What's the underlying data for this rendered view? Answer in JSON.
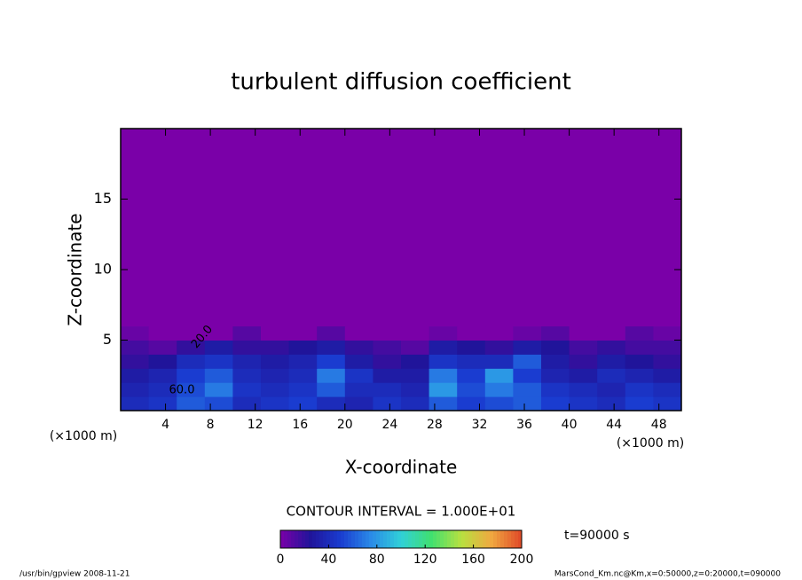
{
  "chart_data": {
    "type": "heatmap",
    "title": "turbulent diffusion coefficient",
    "xlabel": "X-coordinate",
    "ylabel": "Z-coordinate",
    "xunit": "(×1000 m)",
    "yunit": "(×1000 m)",
    "xlim": [
      0,
      50
    ],
    "ylim": [
      0,
      20
    ],
    "xticks": [
      4,
      8,
      12,
      16,
      20,
      24,
      28,
      32,
      36,
      40,
      44,
      48
    ],
    "yticks": [
      5,
      10,
      15
    ],
    "xbins": [
      0,
      2.5,
      5,
      7.5,
      10,
      12.5,
      15,
      17.5,
      20,
      22.5,
      25,
      27.5,
      30,
      32.5,
      35,
      37.5,
      40,
      42.5,
      45,
      47.5,
      50
    ],
    "ybins": [
      0,
      1,
      2,
      3,
      4,
      5,
      6,
      20
    ],
    "values": [
      [
        40,
        45,
        60,
        55,
        40,
        45,
        50,
        40,
        35,
        45,
        40,
        60,
        50,
        55,
        60,
        50,
        45,
        40,
        50,
        45
      ],
      [
        35,
        40,
        55,
        70,
        45,
        40,
        45,
        60,
        40,
        40,
        35,
        80,
        55,
        70,
        60,
        45,
        40,
        35,
        45,
        40
      ],
      [
        30,
        35,
        50,
        60,
        40,
        35,
        40,
        70,
        45,
        30,
        30,
        70,
        50,
        80,
        50,
        35,
        30,
        40,
        35,
        30
      ],
      [
        20,
        25,
        40,
        45,
        35,
        30,
        35,
        50,
        30,
        20,
        25,
        45,
        40,
        40,
        60,
        30,
        20,
        30,
        25,
        20
      ],
      [
        15,
        10,
        20,
        30,
        20,
        20,
        25,
        30,
        20,
        15,
        10,
        30,
        25,
        20,
        30,
        25,
        15,
        20,
        15,
        15
      ],
      [
        5,
        0,
        0,
        0,
        10,
        0,
        0,
        10,
        0,
        0,
        0,
        5,
        0,
        0,
        5,
        10,
        0,
        0,
        10,
        5
      ],
      [
        0,
        0,
        0,
        0,
        0,
        0,
        0,
        0,
        0,
        0,
        0,
        0,
        0,
        0,
        0,
        0,
        0,
        0,
        0,
        0
      ]
    ],
    "colormap": [
      "#7a00a8",
      "#20149a",
      "#1a3cd0",
      "#2a8ae8",
      "#30d0d8",
      "#40e070",
      "#b8e040",
      "#f0a840",
      "#e04828"
    ],
    "contour_labels": [
      {
        "value": 60,
        "label": "60.0"
      },
      {
        "value": 20,
        "label": "20.0"
      }
    ],
    "contour_interval": "CONTOUR INTERVAL = 1.000E+01",
    "colorbar": {
      "lim": [
        0,
        200
      ],
      "ticks": [
        0,
        40,
        80,
        120,
        160,
        200
      ]
    },
    "time_label": "t=90000 s",
    "footer_left": "/usr/bin/gpview  2008-11-21",
    "footer_right": "MarsCond_Km.nc@Km,x=0:50000,z=0:20000,t=090000"
  }
}
